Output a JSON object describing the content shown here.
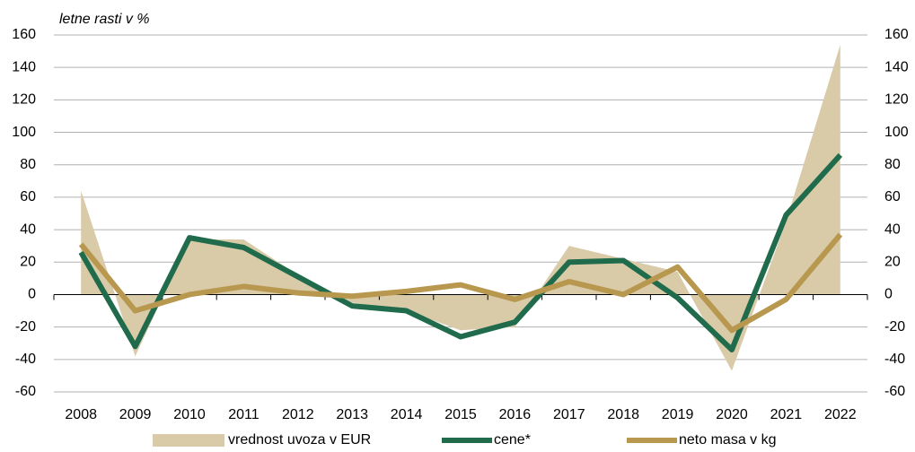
{
  "chart_data": {
    "type": "line",
    "subtitle": "letne rasti v %",
    "categories": [
      "2008",
      "2009",
      "2010",
      "2011",
      "2012",
      "2013",
      "2014",
      "2015",
      "2016",
      "2017",
      "2018",
      "2019",
      "2020",
      "2021",
      "2022"
    ],
    "series": [
      {
        "name": "vrednost uvoza v EUR",
        "type": "area",
        "color": "#d9caa8",
        "values": [
          64,
          -38,
          34,
          34,
          12,
          -5,
          -10,
          -22,
          -20,
          30,
          22,
          14,
          -47,
          45,
          154
        ]
      },
      {
        "name": "cene*",
        "type": "line",
        "color": "#1f6b4b",
        "values": [
          26,
          -32,
          35,
          29,
          11,
          -7,
          -10,
          -26,
          -17,
          20,
          21,
          -2,
          -34,
          49,
          86
        ]
      },
      {
        "name": "neto masa v kg",
        "type": "line",
        "color": "#b8974f",
        "values": [
          31,
          -10,
          0,
          5,
          1,
          -1,
          2,
          6,
          -3,
          8,
          0,
          17,
          -22,
          -3,
          37
        ]
      }
    ],
    "ylim": [
      -60,
      160
    ],
    "yticks": [
      -60,
      -40,
      -20,
      0,
      20,
      40,
      60,
      80,
      100,
      120,
      140,
      160
    ],
    "y2lim": [
      -60,
      160
    ],
    "y2ticks": [
      -60,
      -40,
      -20,
      0,
      20,
      40,
      60,
      80,
      100,
      120,
      140,
      160
    ],
    "grid": true,
    "legend": "bottom"
  }
}
